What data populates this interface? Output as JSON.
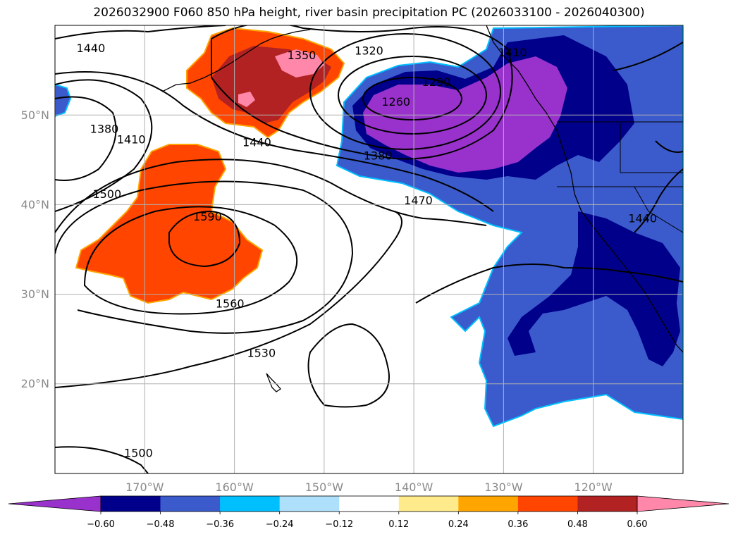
{
  "title": "2026032900 F060 850 hPa height, river basin precipitation PC (2026033100 - 2026040300)",
  "map": {
    "lon_ticks": [
      "170°W",
      "160°W",
      "150°W",
      "140°W",
      "130°W",
      "120°W"
    ],
    "lat_ticks": [
      "50°N",
      "40°N",
      "30°N",
      "20°N"
    ],
    "contour_labels": [
      {
        "text": "1440",
        "lon": -176,
        "lat": 57.5
      },
      {
        "text": "1350",
        "lon": -152.5,
        "lat": 56.7
      },
      {
        "text": "1320",
        "lon": -145,
        "lat": 57.2
      },
      {
        "text": "1290",
        "lon": -137.5,
        "lat": 53.7
      },
      {
        "text": "1260",
        "lon": -142,
        "lat": 51.5
      },
      {
        "text": "1410",
        "lon": -129,
        "lat": 57
      },
      {
        "text": "1380",
        "lon": -174.5,
        "lat": 48.5
      },
      {
        "text": "1410",
        "lon": -171.5,
        "lat": 47.3
      },
      {
        "text": "1440",
        "lon": -157.5,
        "lat": 47
      },
      {
        "text": "1380",
        "lon": -144,
        "lat": 45.5
      },
      {
        "text": "1470",
        "lon": -139.5,
        "lat": 40.5
      },
      {
        "text": "1500",
        "lon": -174.2,
        "lat": 41.2
      },
      {
        "text": "1590",
        "lon": -163,
        "lat": 38.7
      },
      {
        "text": "1440",
        "lon": -114.5,
        "lat": 38.5
      },
      {
        "text": "1560",
        "lon": -160.5,
        "lat": 29
      },
      {
        "text": "1530",
        "lon": -157,
        "lat": 23.5
      },
      {
        "text": "1500",
        "lon": -170.7,
        "lat": 12.3
      }
    ]
  },
  "colorbar": {
    "labels": [
      "−0.60",
      "−0.48",
      "−0.36",
      "−0.24",
      "−0.12",
      "0.12",
      "0.24",
      "0.36",
      "0.48",
      "0.60"
    ],
    "colors": [
      "#9932cc",
      "#00008b",
      "#3b5bcc",
      "#00bfff",
      "#afe0fb",
      "#ffffff",
      "#ffea8c",
      "#ffa500",
      "#ff4500",
      "#b22222",
      "#ff88aa"
    ]
  }
}
